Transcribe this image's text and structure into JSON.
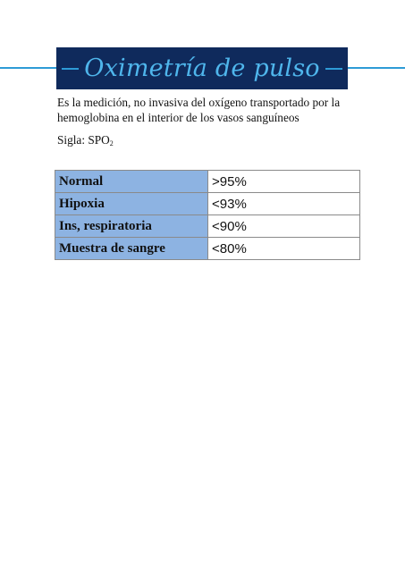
{
  "title": "Oximetría de pulso",
  "description": "Es la medición, no invasiva del oxígeno transportado por la hemoglobina en el interior de los vasos sanguíneos",
  "sigla": {
    "label": "Sigla: SPO",
    "subscript": "2"
  },
  "table": {
    "rows": [
      {
        "condition": "Normal",
        "value": ">95%"
      },
      {
        "condition": "Hipoxia",
        "value": "<93%"
      },
      {
        "condition": "Ins, respiratoria",
        "value": "<90%"
      },
      {
        "condition": "Muestra de sangre",
        "value": "<80%"
      }
    ]
  },
  "colors": {
    "title_bg": "#0f2a5c",
    "title_text": "#4fb6ec",
    "rule": "#2e9bd6",
    "table_label_bg": "#8db3e2"
  }
}
